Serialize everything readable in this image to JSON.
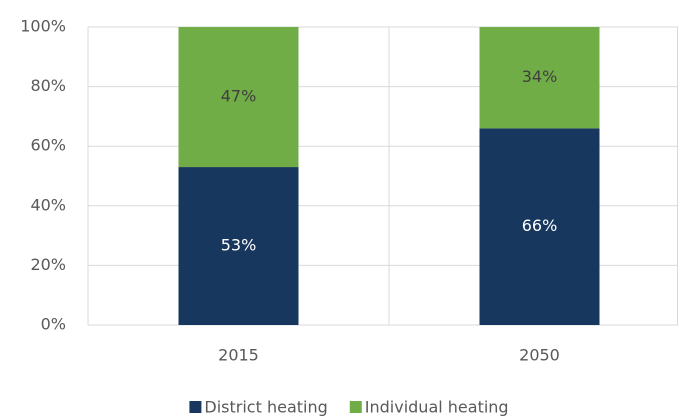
{
  "chart_data": {
    "type": "stacked_bar",
    "categories": [
      "2015",
      "2050"
    ],
    "series": [
      {
        "name": "District heating",
        "color": "#17375e",
        "values": [
          53,
          66
        ],
        "value_labels": [
          "53%",
          "66%"
        ],
        "label_color": "#ffffff"
      },
      {
        "name": "Individual heating",
        "color": "#70ad47",
        "values": [
          47,
          34
        ],
        "value_labels": [
          "47%",
          "34%"
        ],
        "label_color": "#404040"
      }
    ],
    "ylim": [
      0,
      100
    ],
    "yticks": [
      {
        "value": 0,
        "label": "0%"
      },
      {
        "value": 20,
        "label": "20%"
      },
      {
        "value": 40,
        "label": "40%"
      },
      {
        "value": 60,
        "label": "60%"
      },
      {
        "value": 80,
        "label": "80%"
      },
      {
        "value": 100,
        "label": "100%"
      }
    ],
    "grid": true,
    "legend": "bottom"
  }
}
